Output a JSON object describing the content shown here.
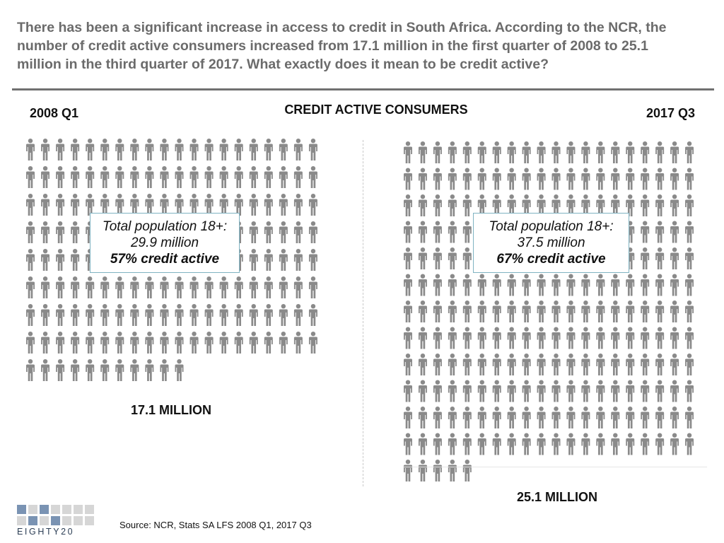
{
  "headline": "There has been a significant increase in access to credit in South Africa. According to the NCR, the number of credit active consumers increased from 17.1 million in the first quarter of 2008 to 25.1 million in the third quarter of 2017. What exactly does it mean to be credit active?",
  "center_title": "CREDIT ACTIVE CONSUMERS",
  "left": {
    "period": "2008 Q1",
    "callout_line1": "Total population 18+:",
    "callout_line2": "29.9 million",
    "callout_line3": "57% credit active",
    "total": "17.1 MILLION"
  },
  "right": {
    "period": "2017 Q3",
    "callout_line1": "Total population 18+:",
    "callout_line2": "37.5 million",
    "callout_line3": "67% credit active",
    "total": "25.1 MILLION"
  },
  "source": "Source: NCR, Stats SA LFS 2008 Q1, 2017 Q3",
  "logo_text": "EIGHTY20",
  "icon": "person-icon",
  "colors": {
    "headline": "#6b6b6b",
    "person": "#8a8a8a",
    "callout_border": "#7fb3c2",
    "logo_light": "#d6d6d6",
    "logo_blue": "#7a93b3",
    "logo_dark": "#2c3e55"
  }
}
